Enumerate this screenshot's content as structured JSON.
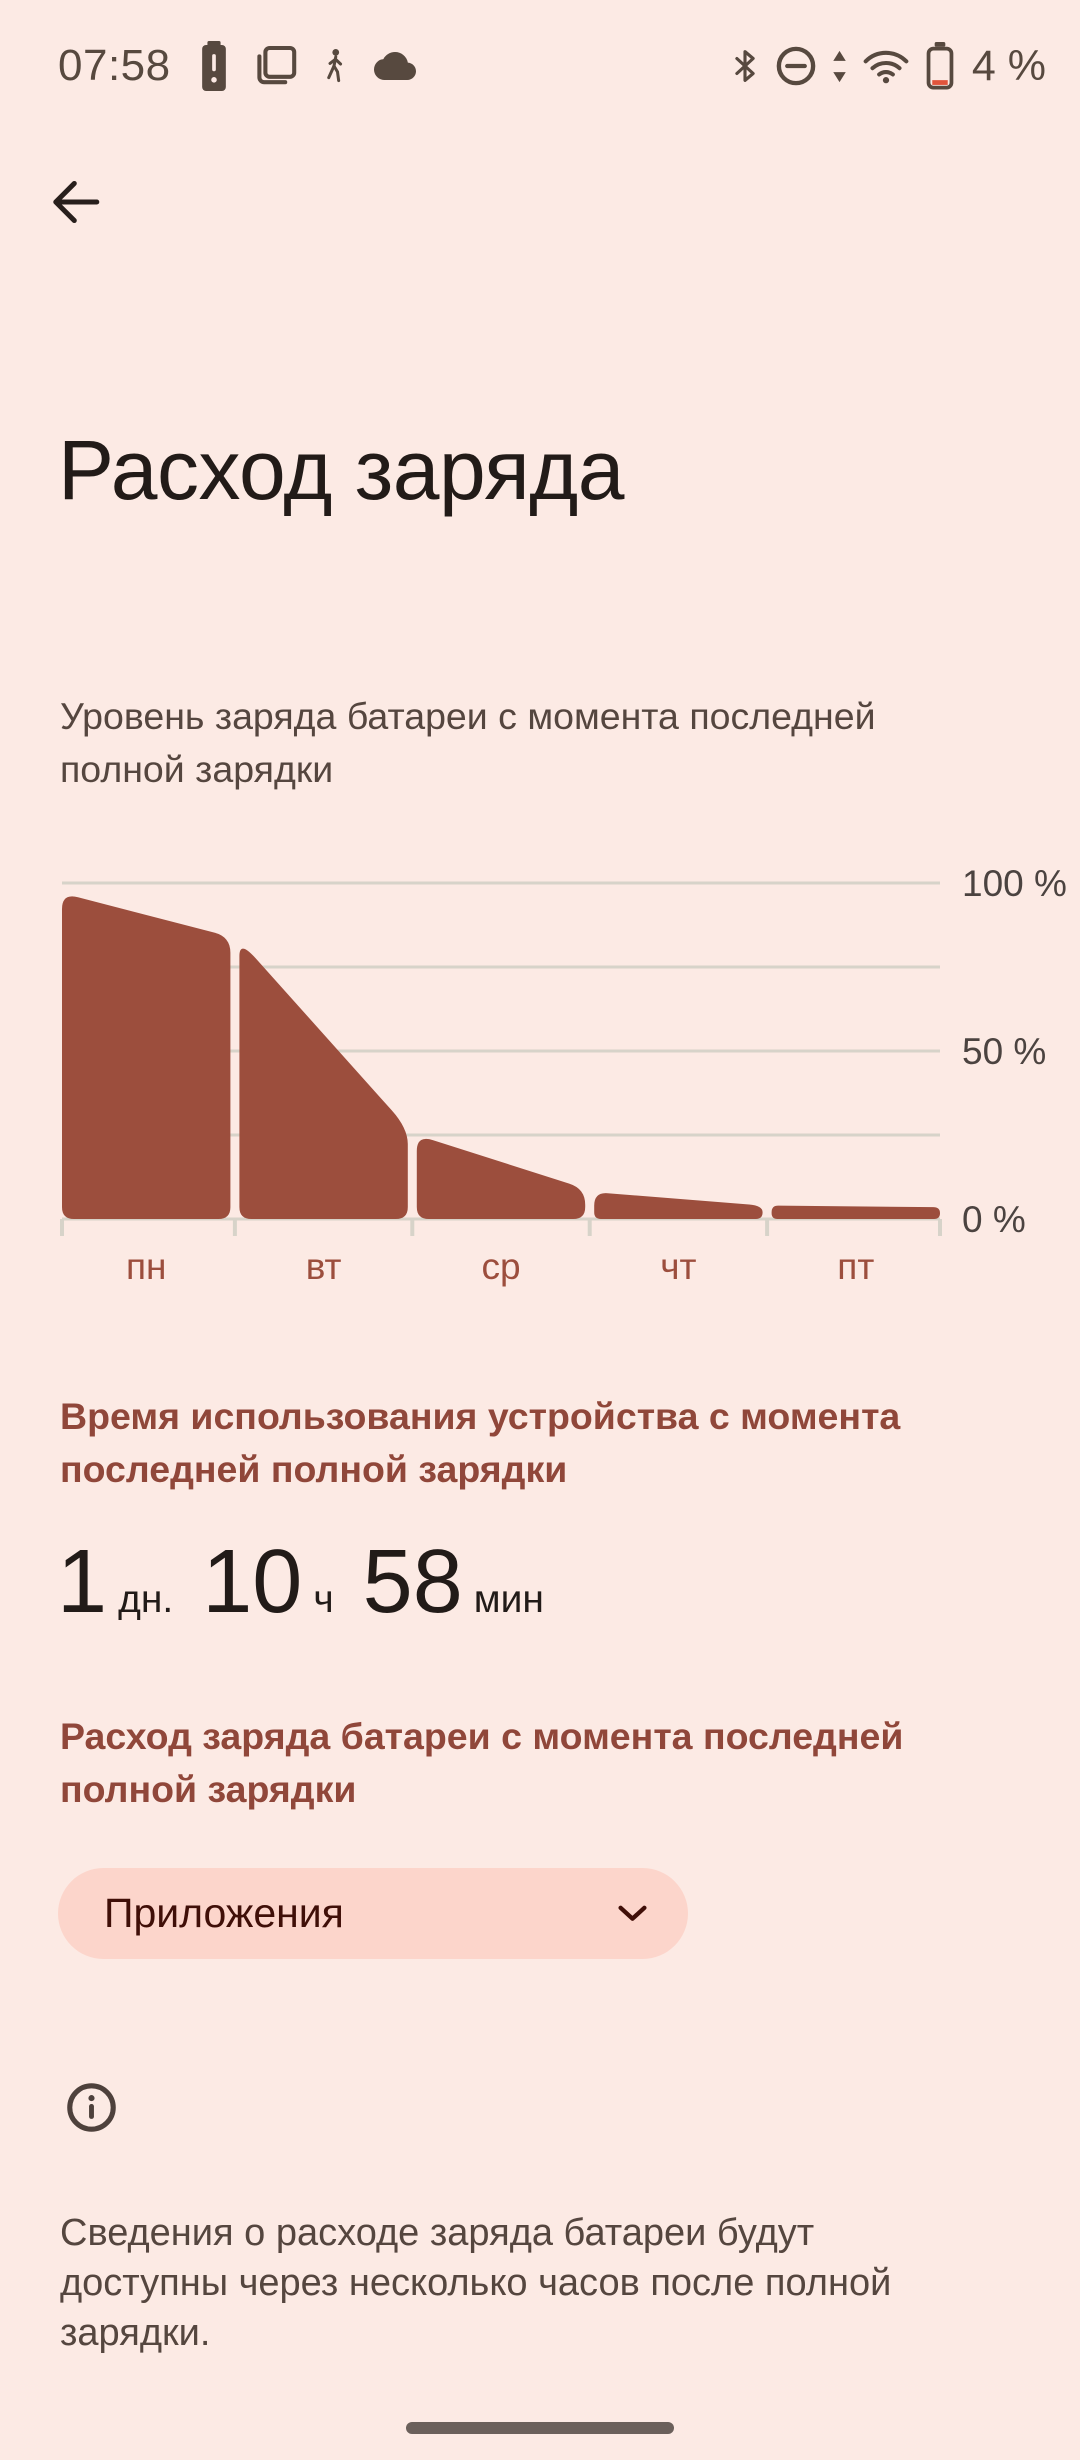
{
  "status_bar": {
    "time": "07:58",
    "battery_percent": "4 %",
    "left_icons": [
      "battery-alert-icon",
      "screen-stack-icon",
      "walking-icon",
      "cloud-icon"
    ],
    "right_icons": [
      "bluetooth-icon",
      "do-not-disturb-icon",
      "network-traffic-icon",
      "wifi-icon",
      "battery-low-icon"
    ]
  },
  "header": {
    "title": "Расход заряда"
  },
  "chart_caption": "Уровень заряда батареи с момента последней\nполной зарядки",
  "sections": {
    "screen_time_header": "Время использования устройства с момента\nпоследней полной зарядки",
    "usage_header": "Расход заряда батареи с момента последней\nполной зарядки"
  },
  "usage_time": {
    "parts": [
      {
        "value": "1",
        "unit": "дн."
      },
      {
        "value": "10",
        "unit": "ч"
      },
      {
        "value": "58",
        "unit": "мин"
      }
    ]
  },
  "filter_chip": {
    "label": "Приложения"
  },
  "footer": {
    "note": "Сведения о расходе заряда батареи будут\nдоступны через несколько часов после полной\nзарядки."
  },
  "chart_data": {
    "type": "area",
    "title": "Уровень заряда батареи с момента последней полной зарядки",
    "xlabel": "",
    "ylabel": "%",
    "ylim": [
      0,
      100
    ],
    "grid": true,
    "gridlines_pct": [
      100,
      75,
      50,
      25,
      0
    ],
    "ytick_labels": [
      {
        "value": 100,
        "label": "100 %"
      },
      {
        "value": 50,
        "label": "50 %"
      },
      {
        "value": 0,
        "label": "0 %"
      }
    ],
    "categories": [
      "пн",
      "вт",
      "ср",
      "чт",
      "пт"
    ],
    "segments": [
      {
        "day": "пн",
        "start_pct": 97,
        "end_pct": 84
      },
      {
        "day": "вт",
        "start_pct": 83,
        "end_pct": 27
      },
      {
        "day": "ср",
        "start_pct": 25,
        "end_pct": 9
      },
      {
        "day": "чт",
        "start_pct": 8,
        "end_pct": 4
      },
      {
        "day": "пт",
        "start_pct": 4,
        "end_pct": 3.5
      }
    ]
  },
  "colors": {
    "background": "#fceae4",
    "bar": "#9c4e3d",
    "accent_text": "#90473a",
    "chip_bg": "#fcd5cb",
    "chip_text": "#400f08",
    "grid": "#d7d3c9",
    "axis_label": "#4b4340",
    "title_text": "#221b18",
    "body_text": "#55463f",
    "status_icon": "#57493f",
    "battery_low": "#e0543c",
    "handle": "#6b605b"
  }
}
